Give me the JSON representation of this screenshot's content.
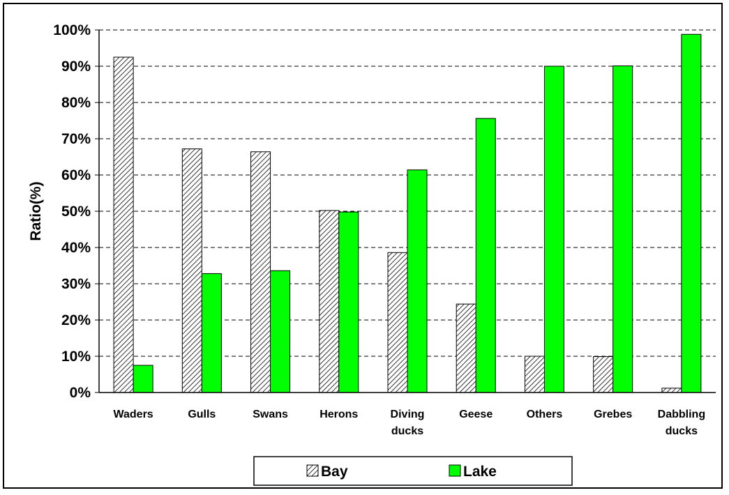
{
  "chart_data": {
    "type": "bar",
    "title": "",
    "xlabel": "",
    "ylabel": "Ratio(%)",
    "ylim": [
      0,
      100
    ],
    "yticks": [
      "0%",
      "10%",
      "20%",
      "30%",
      "40%",
      "50%",
      "60%",
      "70%",
      "80%",
      "90%",
      "100%"
    ],
    "categories": [
      [
        "Waders"
      ],
      [
        "Gulls"
      ],
      [
        "Swans"
      ],
      [
        "Herons"
      ],
      [
        "Diving",
        "ducks"
      ],
      [
        "Geese"
      ],
      [
        "Others"
      ],
      [
        "Grebes"
      ],
      [
        "Dabbling",
        "ducks"
      ]
    ],
    "series": [
      {
        "name": "Bay",
        "values": [
          92.5,
          67.2,
          66.4,
          50.2,
          38.6,
          24.4,
          10.0,
          9.9,
          1.2
        ],
        "pattern": "diagonal-hatch",
        "color": "#000000"
      },
      {
        "name": "Lake",
        "values": [
          7.5,
          32.8,
          33.6,
          49.8,
          61.4,
          75.6,
          90.0,
          90.1,
          98.8
        ],
        "pattern": "solid",
        "color": "#00ff00"
      }
    ],
    "grid": "dashed-horizontal",
    "legend": "bottom-center"
  }
}
